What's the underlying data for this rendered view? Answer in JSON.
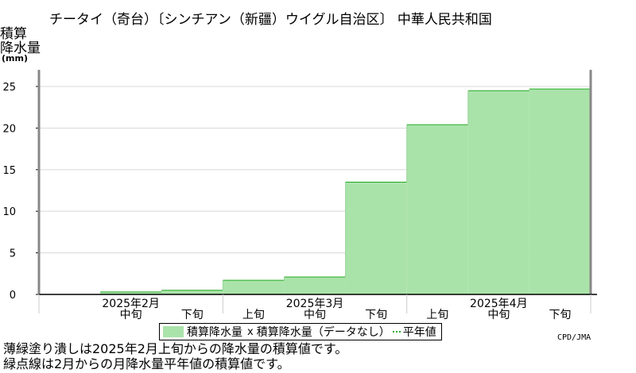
{
  "chart_data": {
    "type": "area",
    "title": "チータイ（奇台）〔シンチアン（新疆）ウイグル自治区〕 中華人民共和国",
    "ylabel_lines": [
      "積算",
      "降水量"
    ],
    "yunit": "(mm)",
    "ylim": [
      0,
      27
    ],
    "yticks": [
      0,
      5,
      10,
      15,
      20,
      25
    ],
    "grid": true,
    "periods": [
      "2025年2月上旬",
      "2025年2月中旬",
      "2025年2月下旬",
      "2025年3月上旬",
      "2025年3月中旬",
      "2025年3月下旬",
      "2025年4月上旬",
      "2025年4月中旬",
      "2025年4月下旬"
    ],
    "x_labels": [
      "中旬",
      "下旬",
      "上旬",
      "中旬",
      "下旬",
      "上旬",
      "中旬",
      "下旬"
    ],
    "months": [
      "2025年2月",
      "2025年3月",
      "2025年4月"
    ],
    "series": [
      {
        "name": "積算降水量",
        "values": [
          0.3,
          0.5,
          1.7,
          2.1,
          13.5,
          20.4,
          24.5,
          24.7
        ]
      }
    ],
    "fill_color": "#aae3aa",
    "edge_color": "#22aa22",
    "legend_position": "bottom"
  },
  "legend": {
    "item1": "積算降水量",
    "marker": "x",
    "item2": "積算降水量（データなし）",
    "item3": "平年値"
  },
  "credit": "CPD/JMA",
  "notes": [
    "薄緑塗り潰しは2025年2月上旬からの降水量の積算値です。",
    "緑点線は2月からの月降水量平年値の積算値です。"
  ]
}
